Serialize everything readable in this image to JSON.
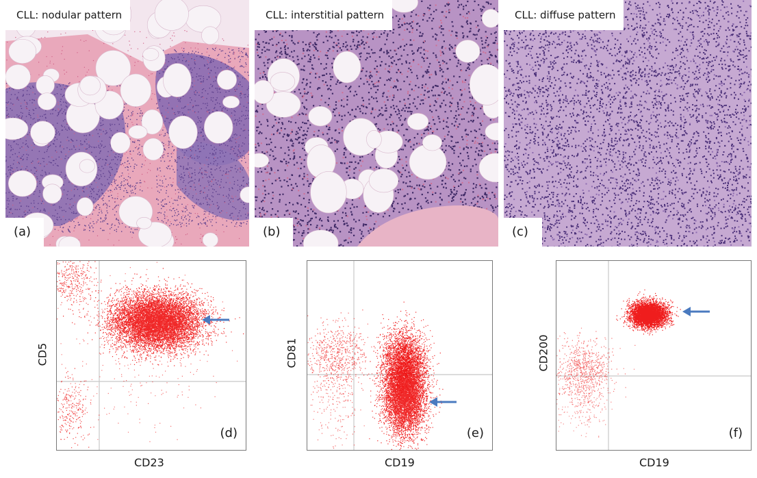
{
  "colors": {
    "he_pink": "#e3879f",
    "he_purple": "#7a5aa6",
    "fat_white": "#f7f2f6",
    "flow_dot": "#ee1111",
    "arrow": "#4a7abf",
    "gate_line": "#c8c8c8"
  },
  "histology": [
    {
      "title": "CLL: nodular pattern",
      "label": "(a)",
      "pattern": "nodular"
    },
    {
      "title": "CLL: interstitial pattern",
      "label": "(b)",
      "pattern": "interstitial"
    },
    {
      "title": "CLL: diffuse pattern",
      "label": "(c)",
      "pattern": "diffuse"
    }
  ],
  "flow": [
    {
      "label": "(d)",
      "xlabel": "CD23",
      "ylabel": "CD5",
      "arrow_icon": "arrow-left-icon"
    },
    {
      "label": "(e)",
      "xlabel": "CD19",
      "ylabel": "CD81",
      "arrow_icon": "arrow-left-icon"
    },
    {
      "label": "(f)",
      "xlabel": "CD19",
      "ylabel": "CD200",
      "arrow_icon": "arrow-left-icon"
    }
  ]
}
